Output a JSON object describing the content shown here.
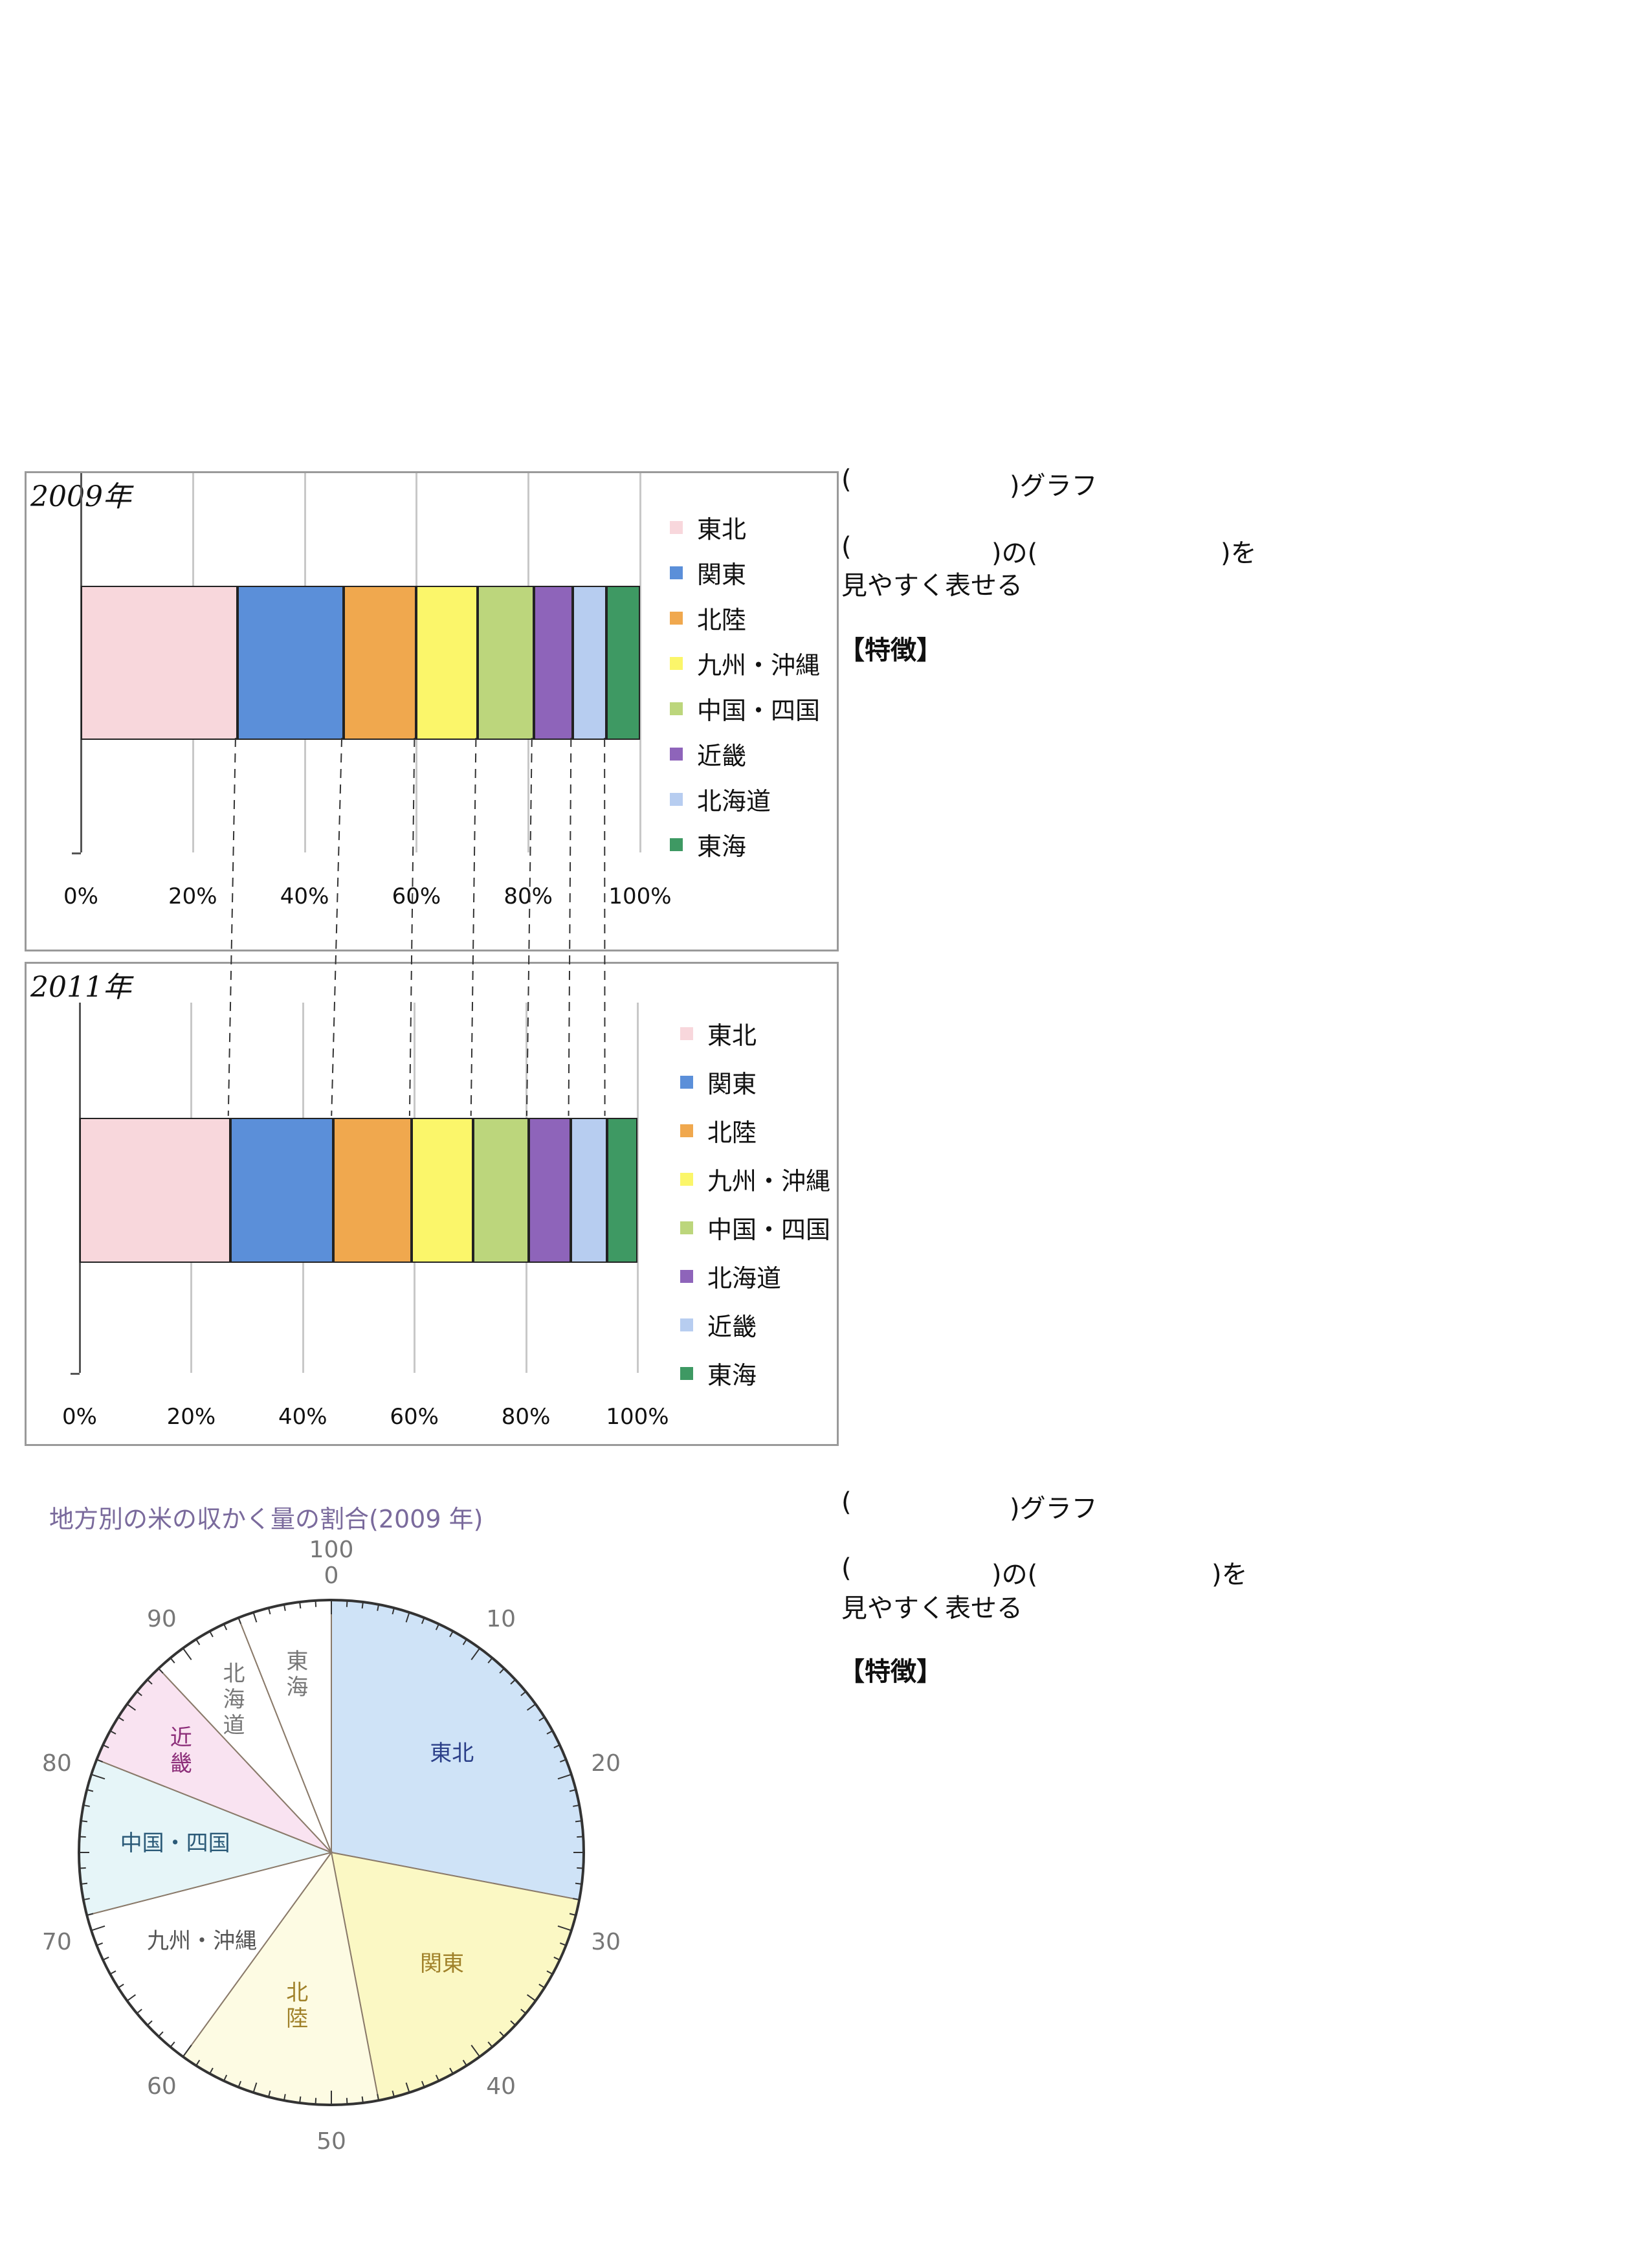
{
  "chart_data": [
    {
      "type": "bar",
      "orientation": "horizontal-stacked",
      "title": "2009年",
      "categories": [
        "東北",
        "関東",
        "北陸",
        "九州・沖縄",
        "中国・四国",
        "近畿",
        "北海道",
        "東海"
      ],
      "values": [
        28,
        19,
        13,
        11,
        10,
        7,
        6,
        6
      ],
      "xlim": [
        0,
        100
      ],
      "xticks": [
        "0%",
        "20%",
        "40%",
        "60%",
        "80%",
        "100%"
      ],
      "colors": [
        "#f8d7dc",
        "#5b8fd9",
        "#f0a84e",
        "#fbf66a",
        "#bcd67c",
        "#8e64ba",
        "#b7cdf0",
        "#3e9963"
      ],
      "legend_position": "right",
      "grid": true
    },
    {
      "type": "bar",
      "orientation": "horizontal-stacked",
      "title": "2011年",
      "categories": [
        "東北",
        "関東",
        "北陸",
        "九州・沖縄",
        "中国・四国",
        "北海道",
        "近畿",
        "東海"
      ],
      "values": [
        27,
        18.5,
        14,
        11,
        10,
        7.5,
        6.5,
        5.5
      ],
      "xlim": [
        0,
        100
      ],
      "xticks": [
        "0%",
        "20%",
        "40%",
        "60%",
        "80%",
        "100%"
      ],
      "colors": [
        "#f8d7dc",
        "#5b8fd9",
        "#f0a84e",
        "#fbf66a",
        "#bcd67c",
        "#8e64ba",
        "#b7cdf0",
        "#3e9963"
      ],
      "legend_position": "right",
      "grid": true
    },
    {
      "type": "pie",
      "title": "地方別の米の収かく量の割合(2009 年)",
      "labels": [
        "東北",
        "関東",
        "北陸",
        "九州・沖縄",
        "中国・四国",
        "近畿",
        "北海道",
        "東海"
      ],
      "values": [
        28,
        19,
        13,
        11,
        10,
        7,
        6,
        6
      ],
      "colors": [
        "#cfe3f7",
        "#fbf8c4",
        "#fdfbe3",
        "#ffffff",
        "#e6f5f8",
        "#f9e3f1",
        "#ffffff",
        "#ffffff"
      ],
      "label_colors": [
        "#2b3f88",
        "#a0812a",
        "#a0812a",
        "#555555",
        "#2b5a78",
        "#8d2f7a",
        "#777777",
        "#777777"
      ],
      "scale_labels": [
        "100",
        "0",
        "10",
        "20",
        "30",
        "40",
        "50",
        "60",
        "70",
        "80",
        "90"
      ]
    }
  ],
  "worksheet": {
    "block1": {
      "line1_open": "(",
      "line1_close": ")グラフ",
      "line2_open": "(",
      "line2_mid": ")の(",
      "line2_close": ")を",
      "line3": "見やすく表せる",
      "feature": "【特徴】"
    },
    "block2": {
      "line1_open": "(",
      "line1_close": ")グラフ",
      "line2_open": "(",
      "line2_mid": ")の(",
      "line2_close": ")を",
      "line3": "見やすく表せる",
      "feature": "【特徴】"
    }
  }
}
